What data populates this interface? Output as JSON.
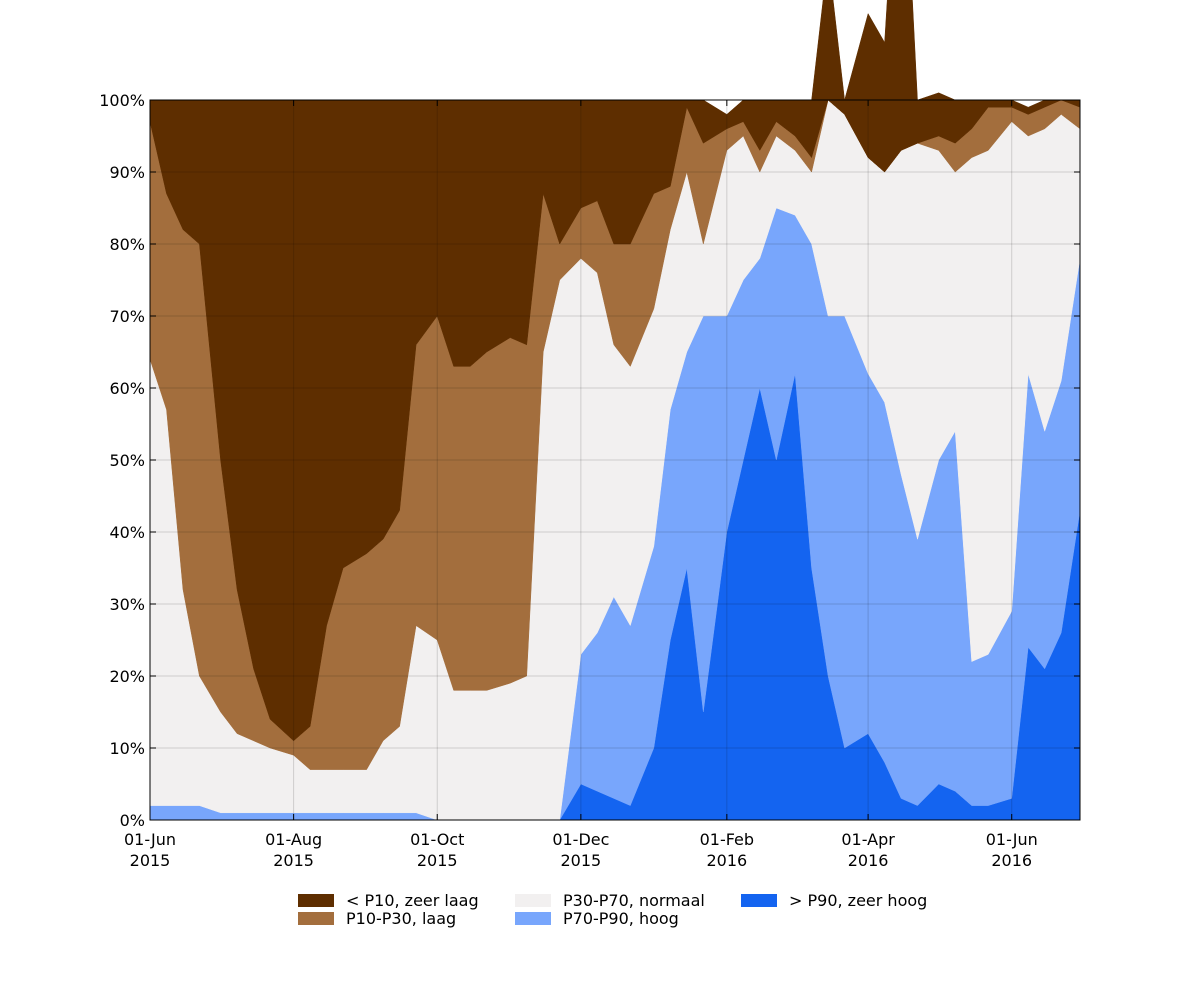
{
  "chart_data": {
    "type": "area",
    "stacked": true,
    "normalized": true,
    "ylim": [
      0,
      100
    ],
    "xlim": [
      "2015-06-01",
      "2016-06-30"
    ],
    "grid": true,
    "legend_position": "bottom",
    "x_ticks": [
      {
        "date": "2015-06-01",
        "label1": "01-Jun",
        "label2": "2015"
      },
      {
        "date": "2015-08-01",
        "label1": "01-Aug",
        "label2": "2015"
      },
      {
        "date": "2015-10-01",
        "label1": "01-Oct",
        "label2": "2015"
      },
      {
        "date": "2015-12-01",
        "label1": "01-Dec",
        "label2": "2015"
      },
      {
        "date": "2016-02-01",
        "label1": "01-Feb",
        "label2": "2016"
      },
      {
        "date": "2016-04-01",
        "label1": "01-Apr",
        "label2": "2016"
      },
      {
        "date": "2016-06-01",
        "label1": "01-Jun",
        "label2": "2016"
      }
    ],
    "y_ticks": [
      {
        "value": 0,
        "label": "0%"
      },
      {
        "value": 10,
        "label": "10%"
      },
      {
        "value": 20,
        "label": "20%"
      },
      {
        "value": 30,
        "label": "30%"
      },
      {
        "value": 40,
        "label": "40%"
      },
      {
        "value": 50,
        "label": "50%"
      },
      {
        "value": 60,
        "label": "60%"
      },
      {
        "value": 70,
        "label": "70%"
      },
      {
        "value": 80,
        "label": "80%"
      },
      {
        "value": 90,
        "label": "90%"
      },
      {
        "value": 100,
        "label": "100%"
      }
    ],
    "x": [
      "2015-06-01",
      "2015-06-08",
      "2015-06-15",
      "2015-06-22",
      "2015-07-01",
      "2015-07-08",
      "2015-07-15",
      "2015-07-22",
      "2015-08-01",
      "2015-08-08",
      "2015-08-15",
      "2015-08-22",
      "2015-09-01",
      "2015-09-08",
      "2015-09-15",
      "2015-09-22",
      "2015-10-01",
      "2015-10-08",
      "2015-10-15",
      "2015-10-22",
      "2015-11-01",
      "2015-11-08",
      "2015-11-15",
      "2015-11-22",
      "2015-12-01",
      "2015-12-08",
      "2015-12-15",
      "2015-12-22",
      "2016-01-01",
      "2016-01-08",
      "2016-01-15",
      "2016-01-22",
      "2016-02-01",
      "2016-02-08",
      "2016-02-15",
      "2016-02-22",
      "2016-03-01",
      "2016-03-08",
      "2016-03-15",
      "2016-03-22",
      "2016-04-01",
      "2016-04-08",
      "2016-04-15",
      "2016-04-22",
      "2016-05-01",
      "2016-05-08",
      "2016-05-15",
      "2016-05-22",
      "2016-06-01",
      "2016-06-08",
      "2016-06-15",
      "2016-06-22",
      "2016-06-30"
    ],
    "series": [
      {
        "name": "> P90, zeer hoog",
        "color": "#1464f0",
        "values": [
          0,
          0,
          0,
          0,
          0,
          0,
          0,
          0,
          0,
          0,
          0,
          0,
          0,
          0,
          0,
          0,
          0,
          0,
          0,
          0,
          0,
          0,
          0,
          0,
          5,
          4,
          3,
          2,
          10,
          25,
          35,
          15,
          40,
          50,
          60,
          50,
          62,
          35,
          20,
          10,
          12,
          8,
          3,
          2,
          5,
          4,
          2,
          2,
          3,
          24,
          21,
          26,
          43
        ]
      },
      {
        "name": "P70-P90, hoog",
        "color": "#78a6fc",
        "values": [
          2,
          2,
          2,
          2,
          1,
          1,
          1,
          1,
          1,
          1,
          1,
          1,
          1,
          1,
          1,
          1,
          0,
          0,
          0,
          0,
          0,
          0,
          0,
          0,
          18,
          22,
          28,
          25,
          28,
          32,
          30,
          55,
          30,
          25,
          18,
          35,
          22,
          45,
          50,
          60,
          50,
          50,
          45,
          37,
          45,
          50,
          20,
          21,
          26,
          38,
          33,
          35,
          35
        ]
      },
      {
        "name": "P30-P70, normaal",
        "color": "#f2f0f0",
        "values": [
          62,
          55,
          30,
          18,
          14,
          11,
          10,
          9,
          8,
          6,
          6,
          6,
          6,
          10,
          12,
          26,
          25,
          18,
          18,
          18,
          19,
          20,
          65,
          75,
          55,
          50,
          35,
          36,
          33,
          25,
          25,
          10,
          23,
          20,
          12,
          10,
          9,
          10,
          30,
          28,
          30,
          32,
          45,
          55,
          43,
          36,
          70,
          70,
          68,
          33,
          42,
          37,
          18
        ]
      },
      {
        "name": "P10-P30, laag",
        "color": "#a36e3d",
        "values": [
          33,
          30,
          50,
          60,
          35,
          20,
          10,
          4,
          2,
          6,
          20,
          28,
          30,
          28,
          30,
          39,
          45,
          45,
          45,
          47,
          48,
          46,
          22,
          5,
          7,
          10,
          14,
          17,
          16,
          6,
          9,
          14,
          3,
          2,
          3,
          2,
          2,
          2,
          0,
          0,
          0,
          0,
          0,
          0,
          2,
          4,
          4,
          6,
          2,
          3,
          3,
          2,
          3
        ]
      },
      {
        "name": "< P10, zeer laag",
        "color": "#5e2e00",
        "values": [
          3,
          13,
          18,
          20,
          50,
          68,
          79,
          86,
          89,
          87,
          73,
          65,
          63,
          61,
          57,
          34,
          30,
          37,
          37,
          35,
          33,
          34,
          13,
          20,
          15,
          14,
          20,
          20,
          13,
          12,
          1,
          6,
          2,
          3,
          7,
          3,
          5,
          8,
          20,
          2,
          20,
          18,
          52,
          6,
          6,
          6,
          4,
          1,
          1,
          1,
          1,
          0,
          1
        ]
      }
    ]
  }
}
